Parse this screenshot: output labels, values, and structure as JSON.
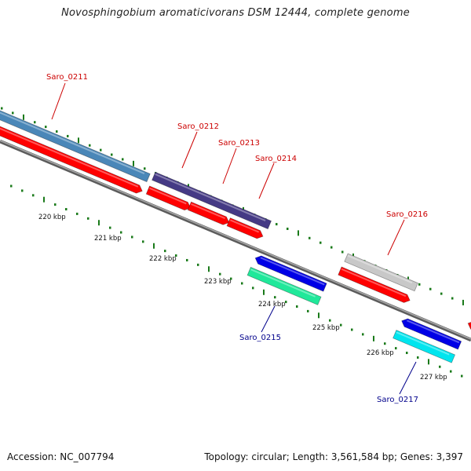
{
  "title": "Novosphingobium aromaticivorans DSM 12444, complete genome",
  "accession": "Accession: NC_007794",
  "topology": "Topology: circular; Length: 3,561,584 bp; Genes: 3,397",
  "colors": {
    "gene_red": "#ff0000",
    "gene_steelblue": "#4a87b8",
    "gene_slateblue": "#453a85",
    "gene_blue": "#0000e6",
    "gene_seagreen": "#20e89a",
    "gene_silver": "#c8c8c8",
    "gene_cyan": "#00e5ee",
    "tick_green": "#1a7a1a",
    "backbone_gray": "#808080"
  },
  "kbp_labels": [
    "220 kbp",
    "221 kbp",
    "222 kbp",
    "223 kbp",
    "224 kbp",
    "225 kbp",
    "226 kbp",
    "227 kbp"
  ],
  "genes_top": [
    {
      "name": "Saro_0211",
      "color": "red"
    },
    {
      "name": "Saro_0212",
      "color": "red"
    },
    {
      "name": "Saro_0213",
      "color": "red"
    },
    {
      "name": "Saro_0214",
      "color": "red"
    },
    {
      "name": "Saro_0216",
      "color": "red"
    }
  ],
  "genes_bottom": [
    {
      "name": "Saro_0215",
      "color": "blue"
    },
    {
      "name": "Saro_0217",
      "color": "blue"
    }
  ]
}
